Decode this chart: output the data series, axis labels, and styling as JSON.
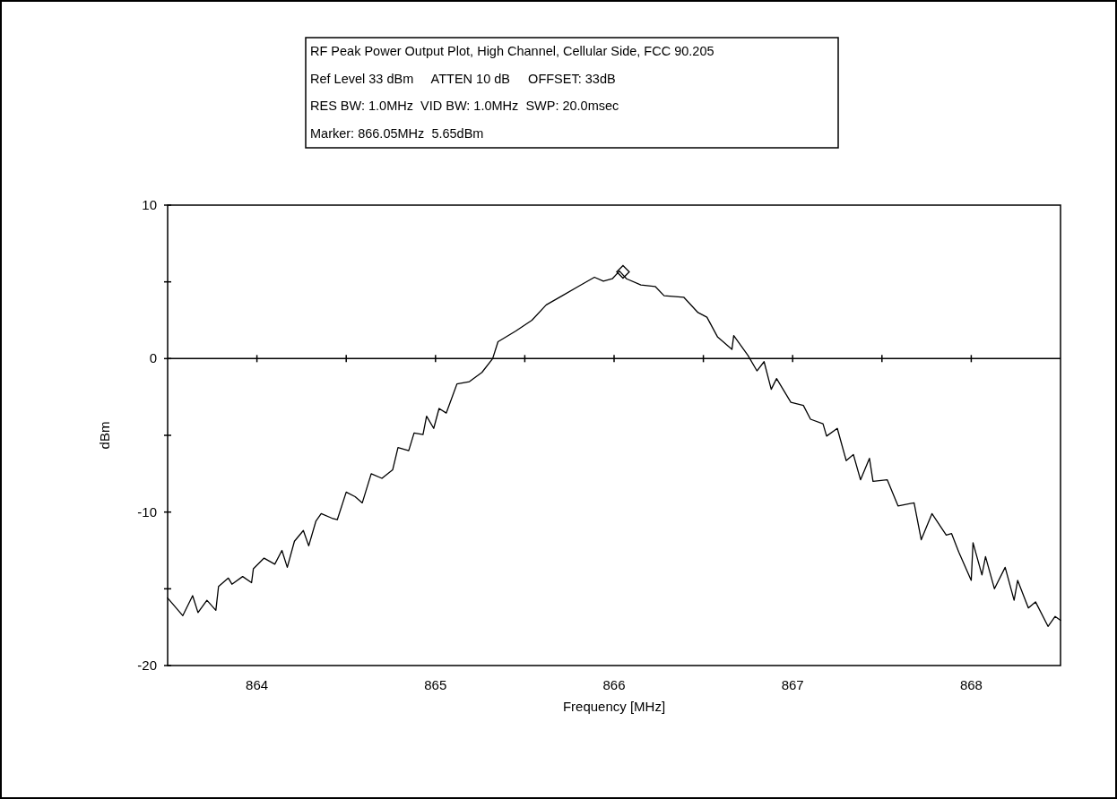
{
  "chart_data": {
    "type": "line",
    "title": "RF Peak Power Output Plot, High Channel, Cellular Side, FCC 90.205",
    "annotations": [
      "Ref Level 33 dBm     ATTEN 10 dB     OFFSET: 33dB",
      "RES BW: 1.0MHz  VID BW: 1.0MHz  SWP: 20.0msec",
      "Marker: 866.05MHz  5.65dBm"
    ],
    "xlabel": "Frequency [MHz]",
    "ylabel": "dBm",
    "xlim": [
      863.5,
      868.5
    ],
    "ylim": [
      -20,
      10
    ],
    "xticks": [
      864,
      {
        "value": 864.5,
        "label": null
      },
      865,
      {
        "value": 865.5,
        "label": null
      },
      866,
      {
        "value": 866.5,
        "label": null
      },
      867,
      {
        "value": 867.5,
        "label": null
      },
      868
    ],
    "yticks": [
      -20,
      {
        "value": -15,
        "label": null
      },
      -10,
      {
        "value": -5,
        "label": null
      },
      0,
      {
        "value": 5,
        "label": null
      },
      10
    ],
    "ref_lines": [
      {
        "axis": "y",
        "value": 0,
        "color": "#000000"
      }
    ],
    "grid": false,
    "marker": "none",
    "line_style": "solid",
    "series": [
      {
        "color": "#000000",
        "x": [
          863.5,
          863.585,
          863.64,
          863.67,
          863.72,
          863.77,
          863.785,
          863.84,
          863.86,
          863.92,
          863.97,
          863.98,
          864.04,
          864.1,
          864.14,
          864.17,
          864.21,
          864.26,
          864.29,
          864.33,
          864.36,
          864.42,
          864.45,
          864.5,
          864.55,
          864.59,
          864.64,
          864.7,
          864.76,
          864.79,
          864.85,
          864.88,
          864.93,
          864.95,
          864.99,
          865.02,
          865.06,
          865.12,
          865.19,
          865.26,
          865.32,
          865.35,
          865.45,
          865.54,
          865.62,
          865.71,
          865.8,
          865.89,
          865.94,
          865.99,
          866.03,
          866.07,
          866.15,
          866.23,
          866.28,
          866.39,
          866.47,
          866.52,
          866.58,
          866.66,
          866.67,
          866.75,
          866.8,
          866.84,
          866.88,
          866.91,
          866.99,
          867.06,
          867.1,
          867.17,
          867.19,
          867.25,
          867.3,
          867.34,
          867.38,
          867.43,
          867.45,
          867.53,
          867.59,
          867.68,
          867.72,
          867.78,
          867.86,
          867.89,
          867.93,
          868.0,
          868.01,
          868.06,
          868.08,
          868.13,
          868.19,
          868.24,
          868.26,
          868.32,
          868.36,
          868.43,
          868.47,
          868.5
        ],
        "values": [
          -15.6,
          -16.75,
          -15.45,
          -16.55,
          -15.75,
          -16.4,
          -14.85,
          -14.3,
          -14.7,
          -14.2,
          -14.6,
          -13.7,
          -13.0,
          -13.4,
          -12.5,
          -13.6,
          -11.9,
          -11.2,
          -12.2,
          -10.6,
          -10.1,
          -10.4,
          -10.5,
          -8.7,
          -9.0,
          -9.4,
          -7.5,
          -7.8,
          -7.25,
          -5.8,
          -6.0,
          -4.85,
          -4.95,
          -3.75,
          -4.55,
          -3.25,
          -3.55,
          -1.65,
          -1.5,
          -0.9,
          0.0,
          1.1,
          1.8,
          2.5,
          3.5,
          4.1,
          4.7,
          5.3,
          5.05,
          5.2,
          5.7,
          5.2,
          4.8,
          4.7,
          4.1,
          4.0,
          3.0,
          2.7,
          1.4,
          0.6,
          1.5,
          0.2,
          -0.8,
          -0.2,
          -2.0,
          -1.3,
          -2.85,
          -3.05,
          -3.95,
          -4.25,
          -5.05,
          -4.55,
          -6.65,
          -6.25,
          -7.9,
          -6.5,
          -8.0,
          -7.9,
          -9.6,
          -9.4,
          -11.8,
          -10.1,
          -11.5,
          -11.4,
          -12.6,
          -14.45,
          -12.0,
          -14.1,
          -12.9,
          -15.0,
          -13.6,
          -15.75,
          -14.45,
          -16.25,
          -15.85,
          -17.45,
          -16.8,
          -17.05
        ]
      },
      {
        "type": "scatter",
        "marker": "diamond",
        "color": "#000000",
        "x": [
          866.05
        ],
        "values": [
          5.65
        ]
      }
    ]
  }
}
